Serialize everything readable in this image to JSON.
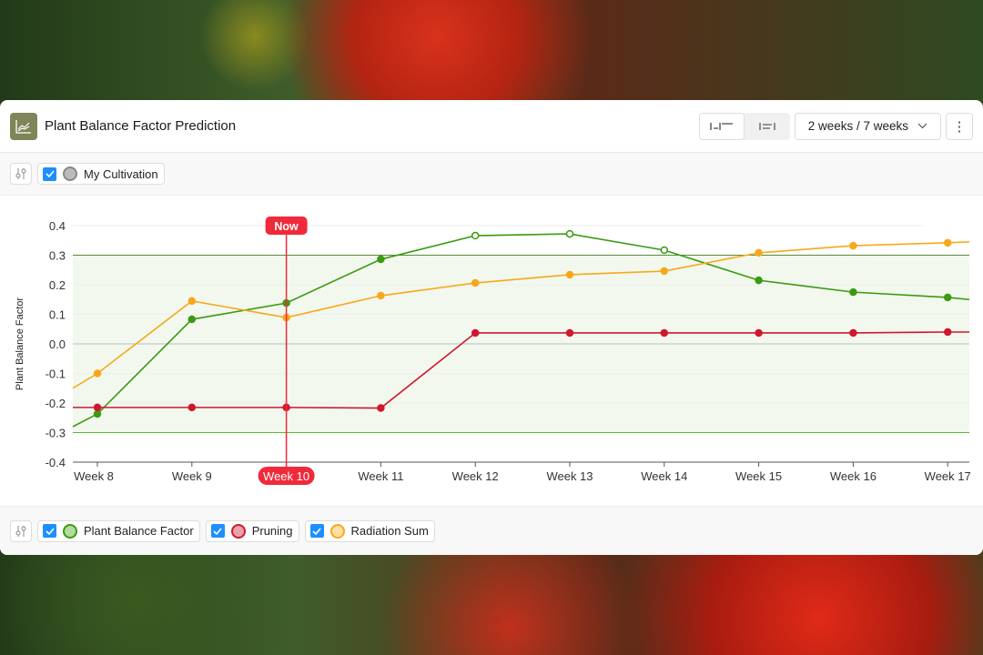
{
  "header": {
    "title": "Plant Balance Factor Prediction",
    "icon": "line-chart-icon",
    "range_label": "2 weeks / 7 weeks",
    "more_icon": "kebab-menu-icon"
  },
  "top_filter": {
    "items": [
      {
        "label": "My Cultivation",
        "color": "#888888",
        "fill": "#bbbbbb",
        "checked": true
      }
    ]
  },
  "legend": {
    "items": [
      {
        "label": "Plant Balance Factor",
        "color": "#3a9a12",
        "fill": "#b1dc9c",
        "checked": true
      },
      {
        "label": "Pruning",
        "color": "#d0172e",
        "fill": "#eba3aa",
        "checked": true
      },
      {
        "label": "Radiation Sum",
        "color": "#f7a81a",
        "fill": "#fde0a8",
        "checked": true
      }
    ]
  },
  "chart_data": {
    "type": "line",
    "ylabel": "Plant Balance Factor",
    "ylim": [
      -0.4,
      0.4
    ],
    "yticks": [
      "0.4",
      "0.3",
      "0.2",
      "0.1",
      "0.0",
      "-0.1",
      "-0.2",
      "-0.3",
      "-0.4"
    ],
    "categories": [
      "Week 8",
      "Week 9",
      "Week 10",
      "Week 11",
      "Week 12",
      "Week 13",
      "Week 14",
      "Week 15",
      "Week 16",
      "Week 17"
    ],
    "now_label": "Now",
    "now_category": "Week 10",
    "target_band": [
      -0.3,
      0.3
    ],
    "grid": true,
    "series": [
      {
        "name": "Plant Balance Factor",
        "color": "#3a9a12",
        "values": [
          -0.237,
          0.083,
          0.138,
          0.286,
          0.366,
          0.372,
          0.317,
          0.215,
          0.175,
          0.157
        ],
        "hollow": [
          false,
          false,
          false,
          false,
          true,
          true,
          true,
          false,
          false,
          false
        ],
        "edge_start": -0.28,
        "edge_end": 0.15
      },
      {
        "name": "Pruning",
        "color": "#d0172e",
        "values": [
          -0.215,
          -0.215,
          -0.215,
          -0.217,
          0.037,
          0.037,
          0.037,
          0.037,
          0.037,
          0.04
        ],
        "edge_start": -0.215,
        "edge_end": 0.04
      },
      {
        "name": "Radiation Sum",
        "color": "#f7a81a",
        "values": [
          -0.1,
          0.145,
          0.089,
          0.163,
          0.206,
          0.234,
          0.246,
          0.308,
          0.332,
          0.342
        ],
        "edge_start": -0.15,
        "edge_end": 0.345
      }
    ]
  }
}
